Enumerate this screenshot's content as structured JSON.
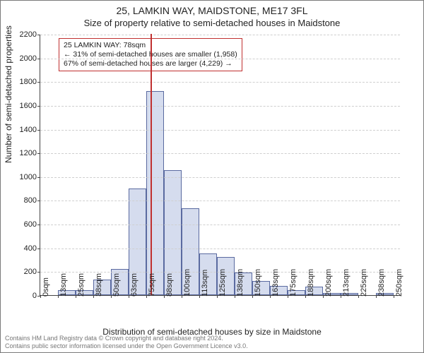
{
  "title_line1": "25, LAMKIN WAY, MAIDSTONE, ME17 3FL",
  "title_line2": "Size of property relative to semi-detached houses in Maidstone",
  "ylabel": "Number of semi-detached properties",
  "xlabel": "Distribution of semi-detached houses by size in Maidstone",
  "footer_line1": "Contains HM Land Registry data © Crown copyright and database right 2024.",
  "footer_line2": "Contains public sector information licensed under the Open Government Licence v3.0.",
  "annotation": {
    "line1": "25 LAMKIN WAY: 78sqm",
    "line2": "← 31% of semi-detached houses are smaller (1,958)",
    "line3": "67% of semi-detached houses are larger (4,229) →"
  },
  "chart": {
    "type": "histogram",
    "background_color": "#ffffff",
    "grid_color": "#cfcfcf",
    "axis_color": "#444444",
    "bar_fill": "#d5dcee",
    "bar_border": "#5a6aa0",
    "marker_color": "#c03030",
    "marker_x": 78,
    "title_fontsize": 14,
    "subtitle_fontsize": 13,
    "label_fontsize": 12,
    "tick_fontsize": 11,
    "annot_fontsize": 10.5,
    "footer_fontsize": 9,
    "xlim": [
      0,
      255
    ],
    "ylim": [
      0,
      2200
    ],
    "ytick_step": 200,
    "ytick_labels": [
      "0",
      "200",
      "400",
      "600",
      "800",
      "1000",
      "1200",
      "1400",
      "1600",
      "1800",
      "2000",
      "2200"
    ],
    "xtick_step": 12.5,
    "xtick_labels": [
      "0sqm",
      "13sqm",
      "25sqm",
      "38sqm",
      "50sqm",
      "63sqm",
      "75sqm",
      "88sqm",
      "100sqm",
      "113sqm",
      "125sqm",
      "138sqm",
      "150sqm",
      "163sqm",
      "175sqm",
      "188sqm",
      "200sqm",
      "213sqm",
      "225sqm",
      "238sqm",
      "250sqm"
    ],
    "bin_width": 12.5,
    "bins_x": [
      0,
      12.5,
      25,
      37.5,
      50,
      62.5,
      75,
      87.5,
      100,
      112.5,
      125,
      137.5,
      150,
      162.5,
      175,
      187.5,
      200,
      212.5,
      225,
      237.5
    ],
    "values": [
      0,
      40,
      40,
      130,
      220,
      900,
      1720,
      1050,
      730,
      350,
      320,
      190,
      120,
      80,
      40,
      70,
      20,
      20,
      0,
      15
    ]
  }
}
